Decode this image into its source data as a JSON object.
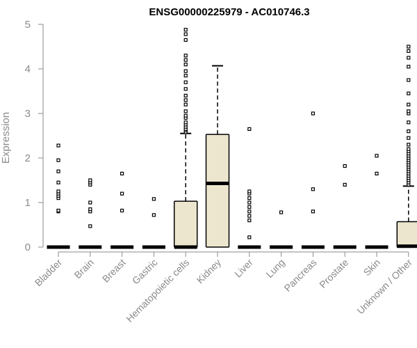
{
  "chart_data": {
    "type": "box",
    "title": "ENSG00000225979 - AC010746.3",
    "xlabel": "",
    "ylabel": "Expression",
    "ylim": [
      0,
      5
    ],
    "yticks": [
      0,
      1,
      2,
      3,
      4,
      5
    ],
    "grid": false,
    "box_fill": "#ede6cf",
    "categories": [
      "Bladder",
      "Brain",
      "Breast",
      "Gastric",
      "Hematopoietic cells",
      "Kidney",
      "Liver",
      "Lung",
      "Pancreas",
      "Prostate",
      "Skin",
      "Unknown / Other"
    ],
    "boxes": [
      {
        "q1": 0,
        "median": 0,
        "q3": 0,
        "whisker_low": 0,
        "whisker_high": 0,
        "outliers": [
          0.8,
          0.82,
          1.1,
          1.15,
          1.2,
          1.25,
          1.45,
          1.7,
          1.95,
          2.28
        ]
      },
      {
        "q1": 0,
        "median": 0,
        "q3": 0,
        "whisker_low": 0,
        "whisker_high": 0,
        "outliers": [
          0.47,
          0.8,
          0.85,
          1.0,
          1.4,
          1.45,
          1.5
        ]
      },
      {
        "q1": 0,
        "median": 0,
        "q3": 0,
        "whisker_low": 0,
        "whisker_high": 0,
        "outliers": [
          0.82,
          1.2,
          1.65
        ]
      },
      {
        "q1": 0,
        "median": 0,
        "q3": 0,
        "whisker_low": 0,
        "whisker_high": 0,
        "outliers": [
          0.72,
          1.08
        ]
      },
      {
        "q1": 0,
        "median": 0,
        "q3": 1.03,
        "whisker_low": 0,
        "whisker_high": 2.55,
        "outliers": [
          2.58,
          2.62,
          2.65,
          2.7,
          2.75,
          2.8,
          2.9,
          2.95,
          3.05,
          3.2,
          3.3,
          3.4,
          3.55,
          3.7,
          3.85,
          3.95,
          4.1,
          4.2,
          4.3,
          4.65,
          4.78,
          4.88
        ]
      },
      {
        "q1": 0,
        "median": 1.43,
        "q3": 2.53,
        "whisker_low": 0,
        "whisker_high": 4.07,
        "outliers": []
      },
      {
        "q1": 0,
        "median": 0,
        "q3": 0,
        "whisker_low": 0,
        "whisker_high": 0,
        "outliers": [
          0.22,
          0.6,
          0.7,
          0.8,
          0.9,
          1.0,
          1.1,
          1.2,
          1.25,
          2.65
        ]
      },
      {
        "q1": 0,
        "median": 0,
        "q3": 0,
        "whisker_low": 0,
        "whisker_high": 0,
        "outliers": [
          0.78
        ]
      },
      {
        "q1": 0,
        "median": 0,
        "q3": 0,
        "whisker_low": 0,
        "whisker_high": 0,
        "outliers": [
          0.8,
          1.3,
          3.0
        ]
      },
      {
        "q1": 0,
        "median": 0,
        "q3": 0,
        "whisker_low": 0,
        "whisker_high": 0,
        "outliers": [
          1.4,
          1.82
        ]
      },
      {
        "q1": 0,
        "median": 0,
        "q3": 0,
        "whisker_low": 0,
        "whisker_high": 0,
        "outliers": [
          1.65,
          2.05
        ]
      },
      {
        "q1": 0,
        "median": 0.02,
        "q3": 0.57,
        "whisker_low": 0,
        "whisker_high": 1.37,
        "outliers": [
          1.4,
          1.45,
          1.5,
          1.55,
          1.6,
          1.65,
          1.7,
          1.75,
          1.8,
          1.85,
          1.9,
          1.95,
          2.0,
          2.05,
          2.1,
          2.15,
          2.2,
          2.3,
          2.45,
          2.6,
          2.8,
          3.0,
          3.05,
          3.2,
          3.45,
          3.75,
          4.05,
          4.25,
          4.4,
          4.5
        ]
      }
    ]
  }
}
